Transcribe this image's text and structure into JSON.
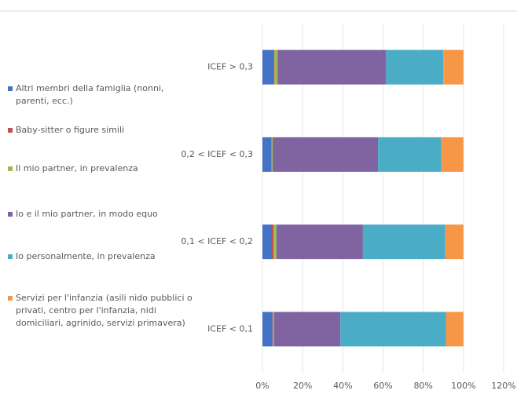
{
  "chart_data": {
    "type": "stacked-bar-horizontal",
    "categories": [
      "ICEF > 0,3",
      "0,2 < ICEF < 0,3",
      "0,1 < ICEF < 0,2",
      "ICEF < 0,1"
    ],
    "series": [
      {
        "name": "Altri membri della famiglia (nonni, parenti, ecc.)",
        "color": "#4472c4",
        "values": [
          5.5,
          4.3,
          4.5,
          5
        ]
      },
      {
        "name": "Baby-sitter o figure simili",
        "color": "#c0504d",
        "values": [
          0.5,
          0.3,
          1,
          0.3
        ]
      },
      {
        "name": "Il mio partner, in prevalenza",
        "color": "#9bbb59",
        "values": [
          1.5,
          0.5,
          1.5,
          0.5
        ]
      },
      {
        "name": "Io e il mio partner, in modo equo",
        "color": "#8064a2",
        "values": [
          54,
          52.4,
          43,
          33
        ]
      },
      {
        "name": "Io personalmente, in prevalenza",
        "color": "#4bacc6",
        "values": [
          28.5,
          31.5,
          41,
          52.5
        ]
      },
      {
        "name": "Servizi per l'infanzia (asili nido pubblici o privati, centro per l'infanzia, nidi domiciliari, agrinido, servizi primavera)",
        "color": "#f79646",
        "values": [
          10,
          11,
          9,
          8.7
        ]
      }
    ],
    "xlim": [
      0,
      120
    ],
    "xticks": [
      {
        "value": 0,
        "label": "0%"
      },
      {
        "value": 20,
        "label": "20%"
      },
      {
        "value": 40,
        "label": "40%"
      },
      {
        "value": 60,
        "label": "60%"
      },
      {
        "value": 80,
        "label": "80%"
      },
      {
        "value": 100,
        "label": "100%"
      },
      {
        "value": 120,
        "label": "120%"
      }
    ],
    "grid": true,
    "legend": "left"
  }
}
